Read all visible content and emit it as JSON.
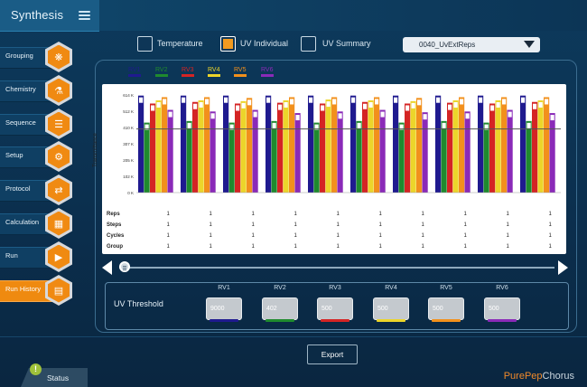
{
  "app": {
    "title": "Synthesis"
  },
  "sidebar": {
    "items": [
      {
        "label": "Grouping",
        "icon": "grouping-icon",
        "glyph": "❋",
        "active": false
      },
      {
        "label": "Chemistry",
        "icon": "flask-icon",
        "glyph": "⚗",
        "active": false
      },
      {
        "label": "Sequence",
        "icon": "sequence-icon",
        "glyph": "☰",
        "active": false
      },
      {
        "label": "Setup",
        "icon": "sliders-icon",
        "glyph": "⚙",
        "active": false
      },
      {
        "label": "Protocol",
        "icon": "protocol-icon",
        "glyph": "⇄",
        "active": false
      },
      {
        "label": "Calculation",
        "icon": "calculator-icon",
        "glyph": "▦",
        "active": false
      },
      {
        "label": "Run",
        "icon": "play-icon",
        "glyph": "▶",
        "active": false
      },
      {
        "label": "Run History",
        "icon": "clipboard-icon",
        "glyph": "▤",
        "active": true
      }
    ]
  },
  "view_options": {
    "temperature": "Temperature",
    "uv_individual": "UV Individual",
    "uv_summary": "UV Summary",
    "selected": "uv_individual"
  },
  "run_select": {
    "value": "0040_UvExtReps"
  },
  "legend": [
    {
      "name": "RV1",
      "color": "#1f1a8f"
    },
    {
      "name": "RV2",
      "color": "#1f8a2e"
    },
    {
      "name": "RV3",
      "color": "#d42424"
    },
    {
      "name": "RV4",
      "color": "#ecd52a"
    },
    {
      "name": "RV5",
      "color": "#f2901c"
    },
    {
      "name": "RV6",
      "color": "#8a2ab8"
    }
  ],
  "chart_data": {
    "type": "bar",
    "ylabel": "Transmittance",
    "yticks": [
      "0 K",
      "102 K",
      "205 K",
      "307 K",
      "410 K",
      "512 K",
      "614 K"
    ],
    "ylim": [
      0,
      614
    ],
    "threshold": 400,
    "groups": 10,
    "series": [
      {
        "name": "RV1",
        "values": [
          610,
          610,
          610,
          610,
          610,
          610,
          610,
          610,
          610,
          610
        ]
      },
      {
        "name": "RV2",
        "values": [
          440,
          450,
          440,
          450,
          440,
          450,
          440,
          450,
          440,
          450
        ]
      },
      {
        "name": "RV3",
        "values": [
          560,
          570,
          560,
          565,
          560,
          570,
          560,
          565,
          560,
          570
        ]
      },
      {
        "name": "RV4",
        "values": [
          580,
          580,
          575,
          580,
          585,
          580,
          575,
          580,
          580,
          580
        ]
      },
      {
        "name": "RV5",
        "values": [
          600,
          600,
          595,
          600,
          600,
          600,
          595,
          600,
          600,
          600
        ]
      },
      {
        "name": "RV6",
        "values": [
          520,
          510,
          520,
          500,
          510,
          520,
          505,
          510,
          520,
          500
        ]
      }
    ]
  },
  "params": {
    "rows": [
      {
        "label": "Reps",
        "values": [
          "1",
          "1",
          "1",
          "1",
          "1",
          "1",
          "1",
          "1",
          "1",
          "1"
        ]
      },
      {
        "label": "Steps",
        "values": [
          "1",
          "1",
          "1",
          "1",
          "1",
          "1",
          "1",
          "1",
          "1",
          "1"
        ]
      },
      {
        "label": "Cycles",
        "values": [
          "1",
          "1",
          "1",
          "1",
          "1",
          "1",
          "1",
          "1",
          "1",
          "1"
        ]
      },
      {
        "label": "Group",
        "values": [
          "1",
          "1",
          "1",
          "1",
          "1",
          "1",
          "1",
          "1",
          "1",
          "1"
        ]
      }
    ]
  },
  "uv_threshold": {
    "title": "UV Threshold",
    "fields": [
      {
        "label": "RV1",
        "value": "9000",
        "color": "#1f1a8f"
      },
      {
        "label": "RV2",
        "value": "402",
        "color": "#1f8a2e"
      },
      {
        "label": "RV3",
        "value": "500",
        "color": "#d42424"
      },
      {
        "label": "RV4",
        "value": "500",
        "color": "#ecd52a"
      },
      {
        "label": "RV5",
        "value": "500",
        "color": "#f2901c"
      },
      {
        "label": "RV6",
        "value": "500",
        "color": "#8a2ab8"
      }
    ]
  },
  "footer": {
    "export_label": "Export",
    "status_label": "Status",
    "status_icon_glyph": "!",
    "brand_a": "PurePep",
    "brand_b": "Chorus"
  }
}
